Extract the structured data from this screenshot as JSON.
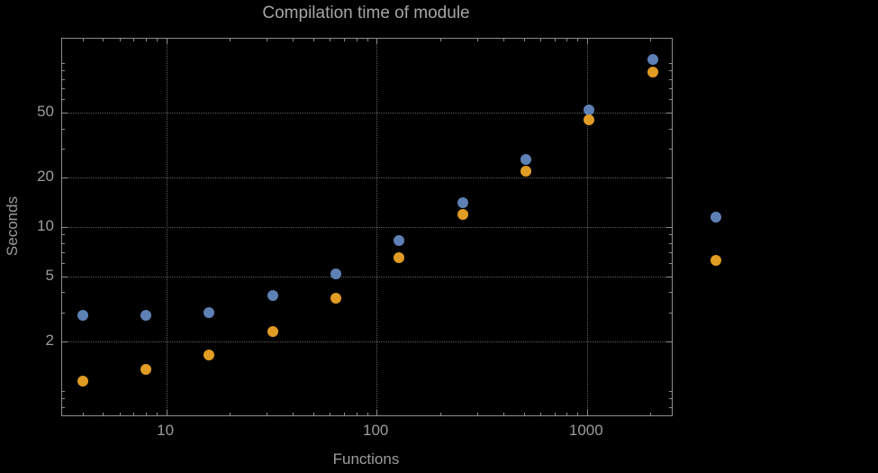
{
  "title": "Compilation time of module",
  "axis": {
    "x_label": "Functions",
    "y_label": "Seconds"
  },
  "chart_data": {
    "type": "scatter",
    "title": "Compilation time of module",
    "xlabel": "Functions",
    "ylabel": "Seconds",
    "x_scale": "log",
    "y_scale": "log",
    "xlim": [
      3.2,
      2530
    ],
    "ylim": [
      0.71,
      141
    ],
    "grid": "dotted",
    "legend": "none",
    "x_ticks": [
      {
        "value": 10,
        "label": "10"
      },
      {
        "value": 100,
        "label": "100"
      },
      {
        "value": 1000,
        "label": "1000"
      }
    ],
    "y_ticks": [
      {
        "value": 2,
        "label": "2"
      },
      {
        "value": 5,
        "label": "5"
      },
      {
        "value": 10,
        "label": "10"
      },
      {
        "value": 20,
        "label": "20"
      },
      {
        "value": 50,
        "label": "50"
      }
    ],
    "x": [
      4,
      8,
      16,
      32,
      64,
      128,
      256,
      512,
      1024,
      2048,
      4096
    ],
    "series": [
      {
        "name": "series-blue",
        "color": "#5E81B5",
        "values": [
          2.9,
          2.9,
          3.0,
          3.8,
          5.2,
          8.3,
          14,
          26,
          52,
          105,
          11.5
        ]
      },
      {
        "name": "series-orange",
        "color": "#E19C24",
        "values": [
          1.15,
          1.35,
          1.65,
          2.3,
          3.7,
          6.5,
          12,
          22,
          45,
          88,
          6.3
        ]
      }
    ],
    "colors": {
      "background": "#000000",
      "frame": "#8c8c8c",
      "grid": "#5e5e5e",
      "text": "#9c9c9c",
      "title_text": "#a6a6a6"
    }
  }
}
